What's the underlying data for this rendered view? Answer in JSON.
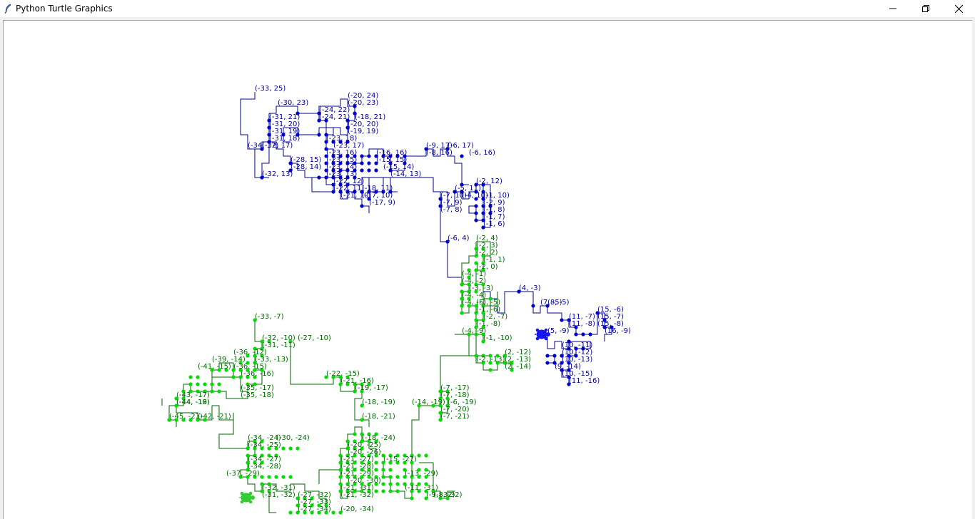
{
  "window": {
    "title": "Python Turtle Graphics",
    "icons": {
      "app": "feather-icon",
      "minimize": "minimize-icon",
      "maximize": "restore-icon",
      "close": "close-icon"
    }
  },
  "colors": {
    "blue_path": "#00008b",
    "blue_dot": "#0000cd",
    "green_path": "#006400",
    "green_dot": "#00dd00",
    "blue_text": "#00008b",
    "green_text": "#006400",
    "turtle_green": "#33cc33",
    "turtle_blue": "#1515ee"
  },
  "labels": {
    "blue": [
      "(-33, 25)",
      "(-30, 23)",
      "(-31, 21)",
      "(-31, 20)",
      "(-31, 19)",
      "(-31, 18)",
      "(-34, 17)",
      "(-32, 17)",
      "(-28, 15)",
      "(-28, 14)",
      "(-32, 13)",
      "(-24, 22)",
      "(-24, 21)",
      "(-20, 24)",
      "(-20, 23)",
      "(-18, 21)",
      "(-20, 20)",
      "(-19, 19)",
      "(-23, 18)",
      "(-23, 17)",
      "(-23, 16)",
      "(-23, 15)",
      "(-23, 14)",
      "(-23, 13)",
      "(-22, 12)",
      "(-22, 11)",
      "(-21, 10)",
      "(-18, 11)",
      "(-17, 10)",
      "(-17, 9)",
      "(-16, 16)",
      "(-15, 15)",
      "(-15, 14)",
      "(-14, 13)",
      "(-9, 17)",
      "(-6, 17)",
      "(-8, 16)",
      "(-6, 16)",
      "(-7, 10)",
      "(-7, 9)",
      "(-7, 8)",
      "(-5, 11)",
      "(-4, 10)",
      "(-2, 12)",
      "(-1, 10)",
      "(-2, 9)",
      "(-1, 8)",
      "(-1, 7)",
      "(-1, 6)",
      "(-6, 4)",
      "(4, -3)",
      "(7, -5)",
      "(8, -5)",
      "(15, -6)",
      "(15, -7)",
      "(15, -8)",
      "(16, -9)",
      "(11, -7)",
      "(11, -8)",
      "(5, -9)",
      "(10, -11)",
      "(10, -12)",
      "(10, -13)",
      "(9, -14)",
      "(10, -15)",
      "(11, -16)"
    ],
    "green": [
      "(-2, 4)",
      "(-2, 3)",
      "(-2, 2)",
      "(-1, 1)",
      "(-2, 0)",
      "(-4, -1)",
      "(-4, -2)",
      "(-3, -3)",
      "(-4, -4)",
      "(-4, -5)",
      "(-1, -5)",
      "(-1, -6)",
      "(-2, -7)",
      "(-1, -8)",
      "(-4, -9)",
      "(-1, -10)",
      "(2, -12)",
      "(2, -13)",
      "(2, -14)",
      "(-2, -13)",
      "(-7, -17)",
      "(-7, -18)",
      "(-6, -19)",
      "(-7, -20)",
      "(-7, -21)",
      "(-14, -19)",
      "(-33, -7)",
      "(-32, -10)",
      "(-27, -10)",
      "(-31, -11)",
      "(-36, -12)",
      "(-33, -13)",
      "(-39, -14)",
      "(-36, -15)",
      "(-41, -15)",
      "(-36, -16)",
      "(-35, -17)",
      "(-35, -18)",
      "(-43, -17)",
      "(-44, -18)",
      "(-44, -19)",
      "(-45, -21)",
      "(-42, -21)",
      "(-22, -15)",
      "(-21, -16)",
      "(-19, -17)",
      "(-18, -19)",
      "(-18, -21)",
      "(-34, -24)",
      "(-30, -24)",
      "(-34, -25)",
      "(-34, -27)",
      "(-34, -28)",
      "(-37, -29)",
      "(-32, -31)",
      "(-31, -32)",
      "(-27, -32)",
      "(-27, -33)",
      "(-27, -34)",
      "(-20, -34)",
      "(-18, -24)",
      "(-20, -25)",
      "(-20, -26)",
      "(-21, -27)",
      "(-15, -27)",
      "(-21, -28)",
      "(-21, -29)",
      "(-13, -29)",
      "(-20, -30)",
      "(-21, -31)",
      "(-11, -31)",
      "(-21, -32)",
      "(-9, -32)",
      "(-8, -32)"
    ]
  }
}
